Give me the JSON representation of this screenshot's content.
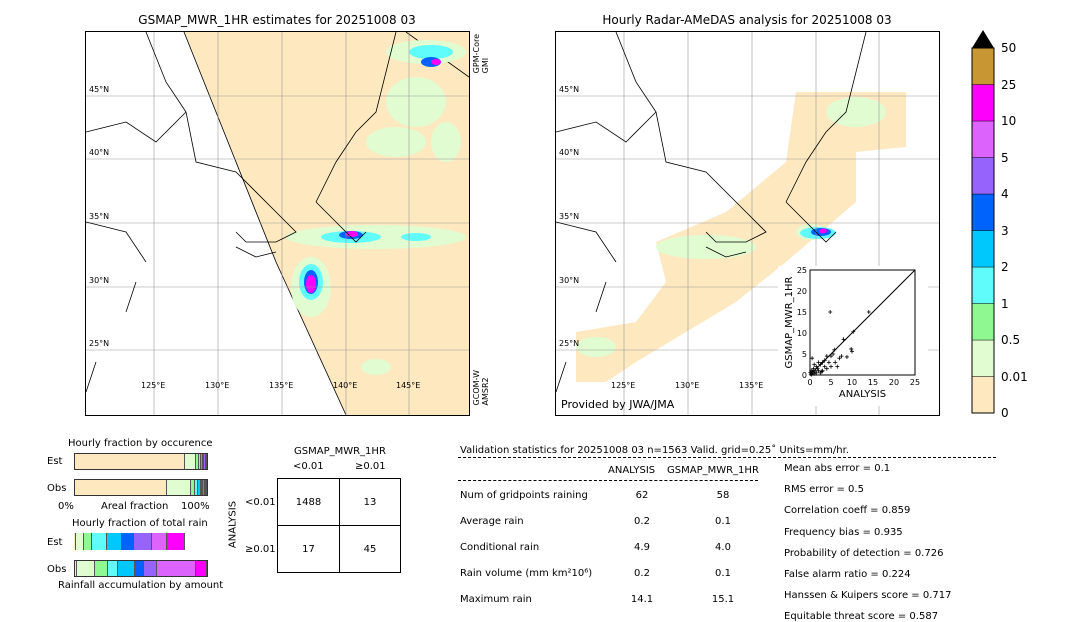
{
  "colors": {
    "bins": [
      "#fee8c0",
      "#e0fcd0",
      "#90f890",
      "#60fcfc",
      "#00c8fc",
      "#0064fc",
      "#9664fc",
      "#dc64fc",
      "#fc00fc",
      "#c89632"
    ],
    "over": "#000000"
  },
  "left_map": {
    "title": "GSMAP_MWR_1HR estimates for 20251008 03",
    "sensor_top": "GPM-Core\nGMI",
    "sensor_top_lines": [
      "GPM-Core",
      "GMI"
    ],
    "sensor_bottom_lines": [
      "GCOM-W",
      "AMSR2"
    ]
  },
  "right_map": {
    "title": "Hourly Radar-AMeDAS analysis for 20251008 03",
    "credit": "Provided by JWA/JMA"
  },
  "lat_labels": [
    "45°N",
    "40°N",
    "35°N",
    "30°N",
    "25°N"
  ],
  "lon_labels": [
    "125°E",
    "130°E",
    "135°E",
    "140°E",
    "145°E"
  ],
  "colorbar": {
    "labels": [
      "50",
      "25",
      "10",
      "5",
      "4",
      "3",
      "2",
      "1",
      "0.5",
      "0.01",
      "0"
    ]
  },
  "chart_data": [
    {
      "type": "scatter",
      "xlabel": "ANALYSIS",
      "ylabel": "GSMAP_MWR_1HR",
      "xlim": [
        0,
        25
      ],
      "ylim": [
        0,
        25
      ],
      "ticks": [
        "0",
        "5",
        "10",
        "15",
        "20",
        "25"
      ],
      "points": [
        [
          4.8,
          15
        ],
        [
          14,
          15
        ],
        [
          10.3,
          10.3
        ],
        [
          8,
          8.5
        ],
        [
          9.8,
          6.2
        ],
        [
          10,
          5.6
        ],
        [
          8.8,
          4.3
        ],
        [
          7.5,
          4.5
        ],
        [
          7,
          4
        ],
        [
          6.5,
          2
        ],
        [
          5.8,
          6
        ],
        [
          5.5,
          5
        ],
        [
          5,
          4.5
        ],
        [
          4.5,
          3
        ],
        [
          4,
          4.5
        ],
        [
          3.5,
          3.5
        ],
        [
          3,
          3
        ],
        [
          2.5,
          2.5
        ],
        [
          2,
          3
        ],
        [
          1.5,
          2
        ],
        [
          1,
          2.5
        ],
        [
          0.5,
          4
        ],
        [
          0.8,
          1.5
        ],
        [
          1.2,
          1
        ],
        [
          2,
          1
        ],
        [
          3,
          1
        ],
        [
          4,
          1.5
        ],
        [
          3.5,
          2
        ],
        [
          2.5,
          0.5
        ],
        [
          1.5,
          0.5
        ],
        [
          0.5,
          0.5
        ],
        [
          0.3,
          1
        ],
        [
          0.2,
          0.2
        ],
        [
          0.6,
          0.8
        ],
        [
          1,
          0.3
        ],
        [
          0.1,
          0.6
        ],
        [
          0.4,
          0.1
        ],
        [
          5,
          2
        ],
        [
          6,
          3
        ],
        [
          2.8,
          0.8
        ],
        [
          1.8,
          1.6
        ]
      ]
    },
    {
      "type": "bar",
      "title": "Hourly fraction by occurence",
      "categories": [
        "Est",
        "Obs"
      ],
      "xlabel": "Areal fraction",
      "xtick_left": "0%",
      "xtick_right": "100%",
      "series": {
        "Est": [
          88,
          8,
          1.5,
          1,
          0.5,
          0.5,
          0.3,
          0.2,
          0,
          0
        ],
        "Obs": [
          74,
          19,
          2,
          2,
          1.5,
          0.7,
          0.4,
          0.2,
          0.2,
          0
        ]
      }
    },
    {
      "type": "bar",
      "title": "Hourly fraction of total rain",
      "categories": [
        "Est",
        "Obs"
      ],
      "xlabel": "Rainfall accumulation by amount",
      "series": {
        "Est": [
          1,
          5,
          5,
          10,
          10,
          8,
          12,
          10,
          12,
          0
        ],
        "Obs": [
          1,
          13,
          10,
          7,
          12,
          7,
          9,
          30,
          8,
          0
        ]
      }
    }
  ],
  "contingency": {
    "title": "GSMAP_MWR_1HR",
    "col_labels": [
      "<0.01",
      "≥0.01"
    ],
    "row_title": "ANALYSIS",
    "row_labels": [
      "<0.01",
      "≥0.01"
    ],
    "cells": [
      [
        "1488",
        "13"
      ],
      [
        "17",
        "45"
      ]
    ]
  },
  "stats": {
    "header": "Validation statistics for 20251008 03  n=1563 Valid. grid=0.25˚ Units=mm/hr.",
    "col_headers": [
      "ANALYSIS",
      "GSMAP_MWR_1HR"
    ],
    "rows": [
      {
        "label": "Num of gridpoints raining",
        "a": "62",
        "g": "58"
      },
      {
        "label": "Average rain",
        "a": "0.2",
        "g": "0.1"
      },
      {
        "label": "Conditional rain",
        "a": "4.9",
        "g": "4.0"
      },
      {
        "label": "Rain volume (mm km²10⁶)",
        "a": "0.2",
        "g": "0.1"
      },
      {
        "label": "Maximum rain",
        "a": "14.1",
        "g": "15.1"
      }
    ],
    "scores": [
      "Mean abs error =    0.1",
      "RMS error =    0.5",
      "Correlation coeff =  0.859",
      "Frequency bias =  0.935",
      "Probability of detection =  0.726",
      "False alarm ratio =  0.224",
      "Hanssen & Kuipers score =  0.717",
      "Equitable threat score =  0.587"
    ]
  }
}
